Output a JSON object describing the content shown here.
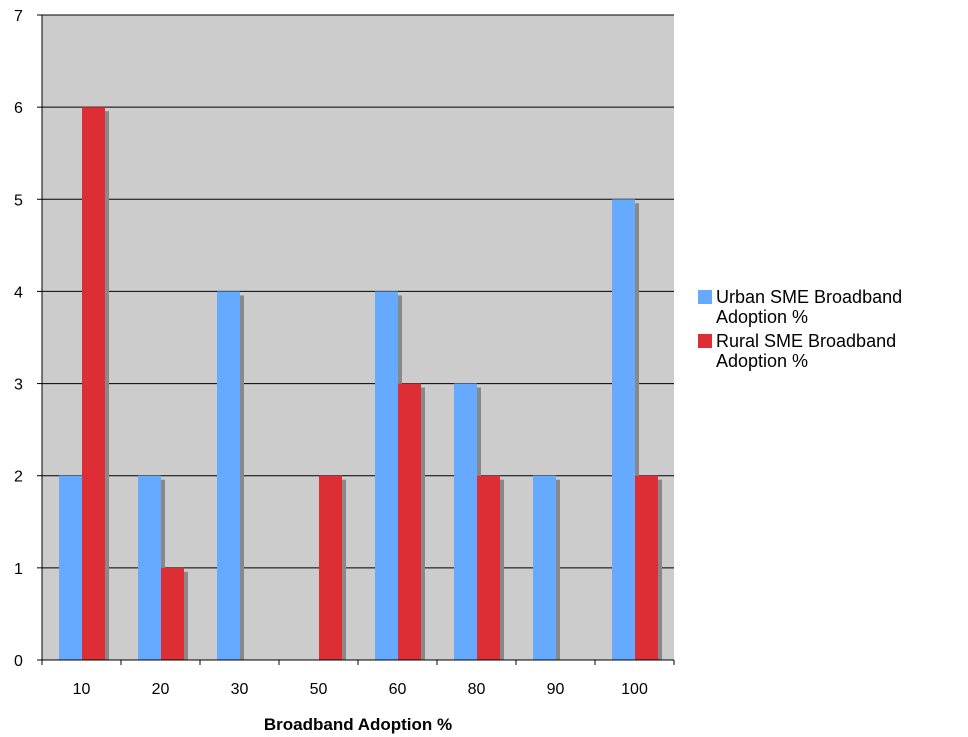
{
  "chart_data": {
    "type": "bar",
    "title": "",
    "xlabel": "Broadband Adoption %",
    "ylabel": "",
    "categories": [
      "10",
      "20",
      "30",
      "50",
      "60",
      "80",
      "90",
      "100"
    ],
    "series": [
      {
        "name": "Urban SME Broadband Adoption %",
        "color": "#66aaff",
        "values": [
          2,
          2,
          4,
          0,
          4,
          3,
          2,
          5
        ]
      },
      {
        "name": "Rural SME Broadband Adoption %",
        "color": "#dd2e36",
        "values": [
          6,
          1,
          0,
          2,
          3,
          2,
          0,
          2
        ]
      }
    ],
    "ylim": [
      0,
      7
    ],
    "yticks": [
      "0",
      "1",
      "2",
      "3",
      "4",
      "5",
      "6",
      "7"
    ],
    "grid": true,
    "legend_position": "right",
    "plot_background": "#cccccc",
    "shadow_color": "#888888"
  }
}
